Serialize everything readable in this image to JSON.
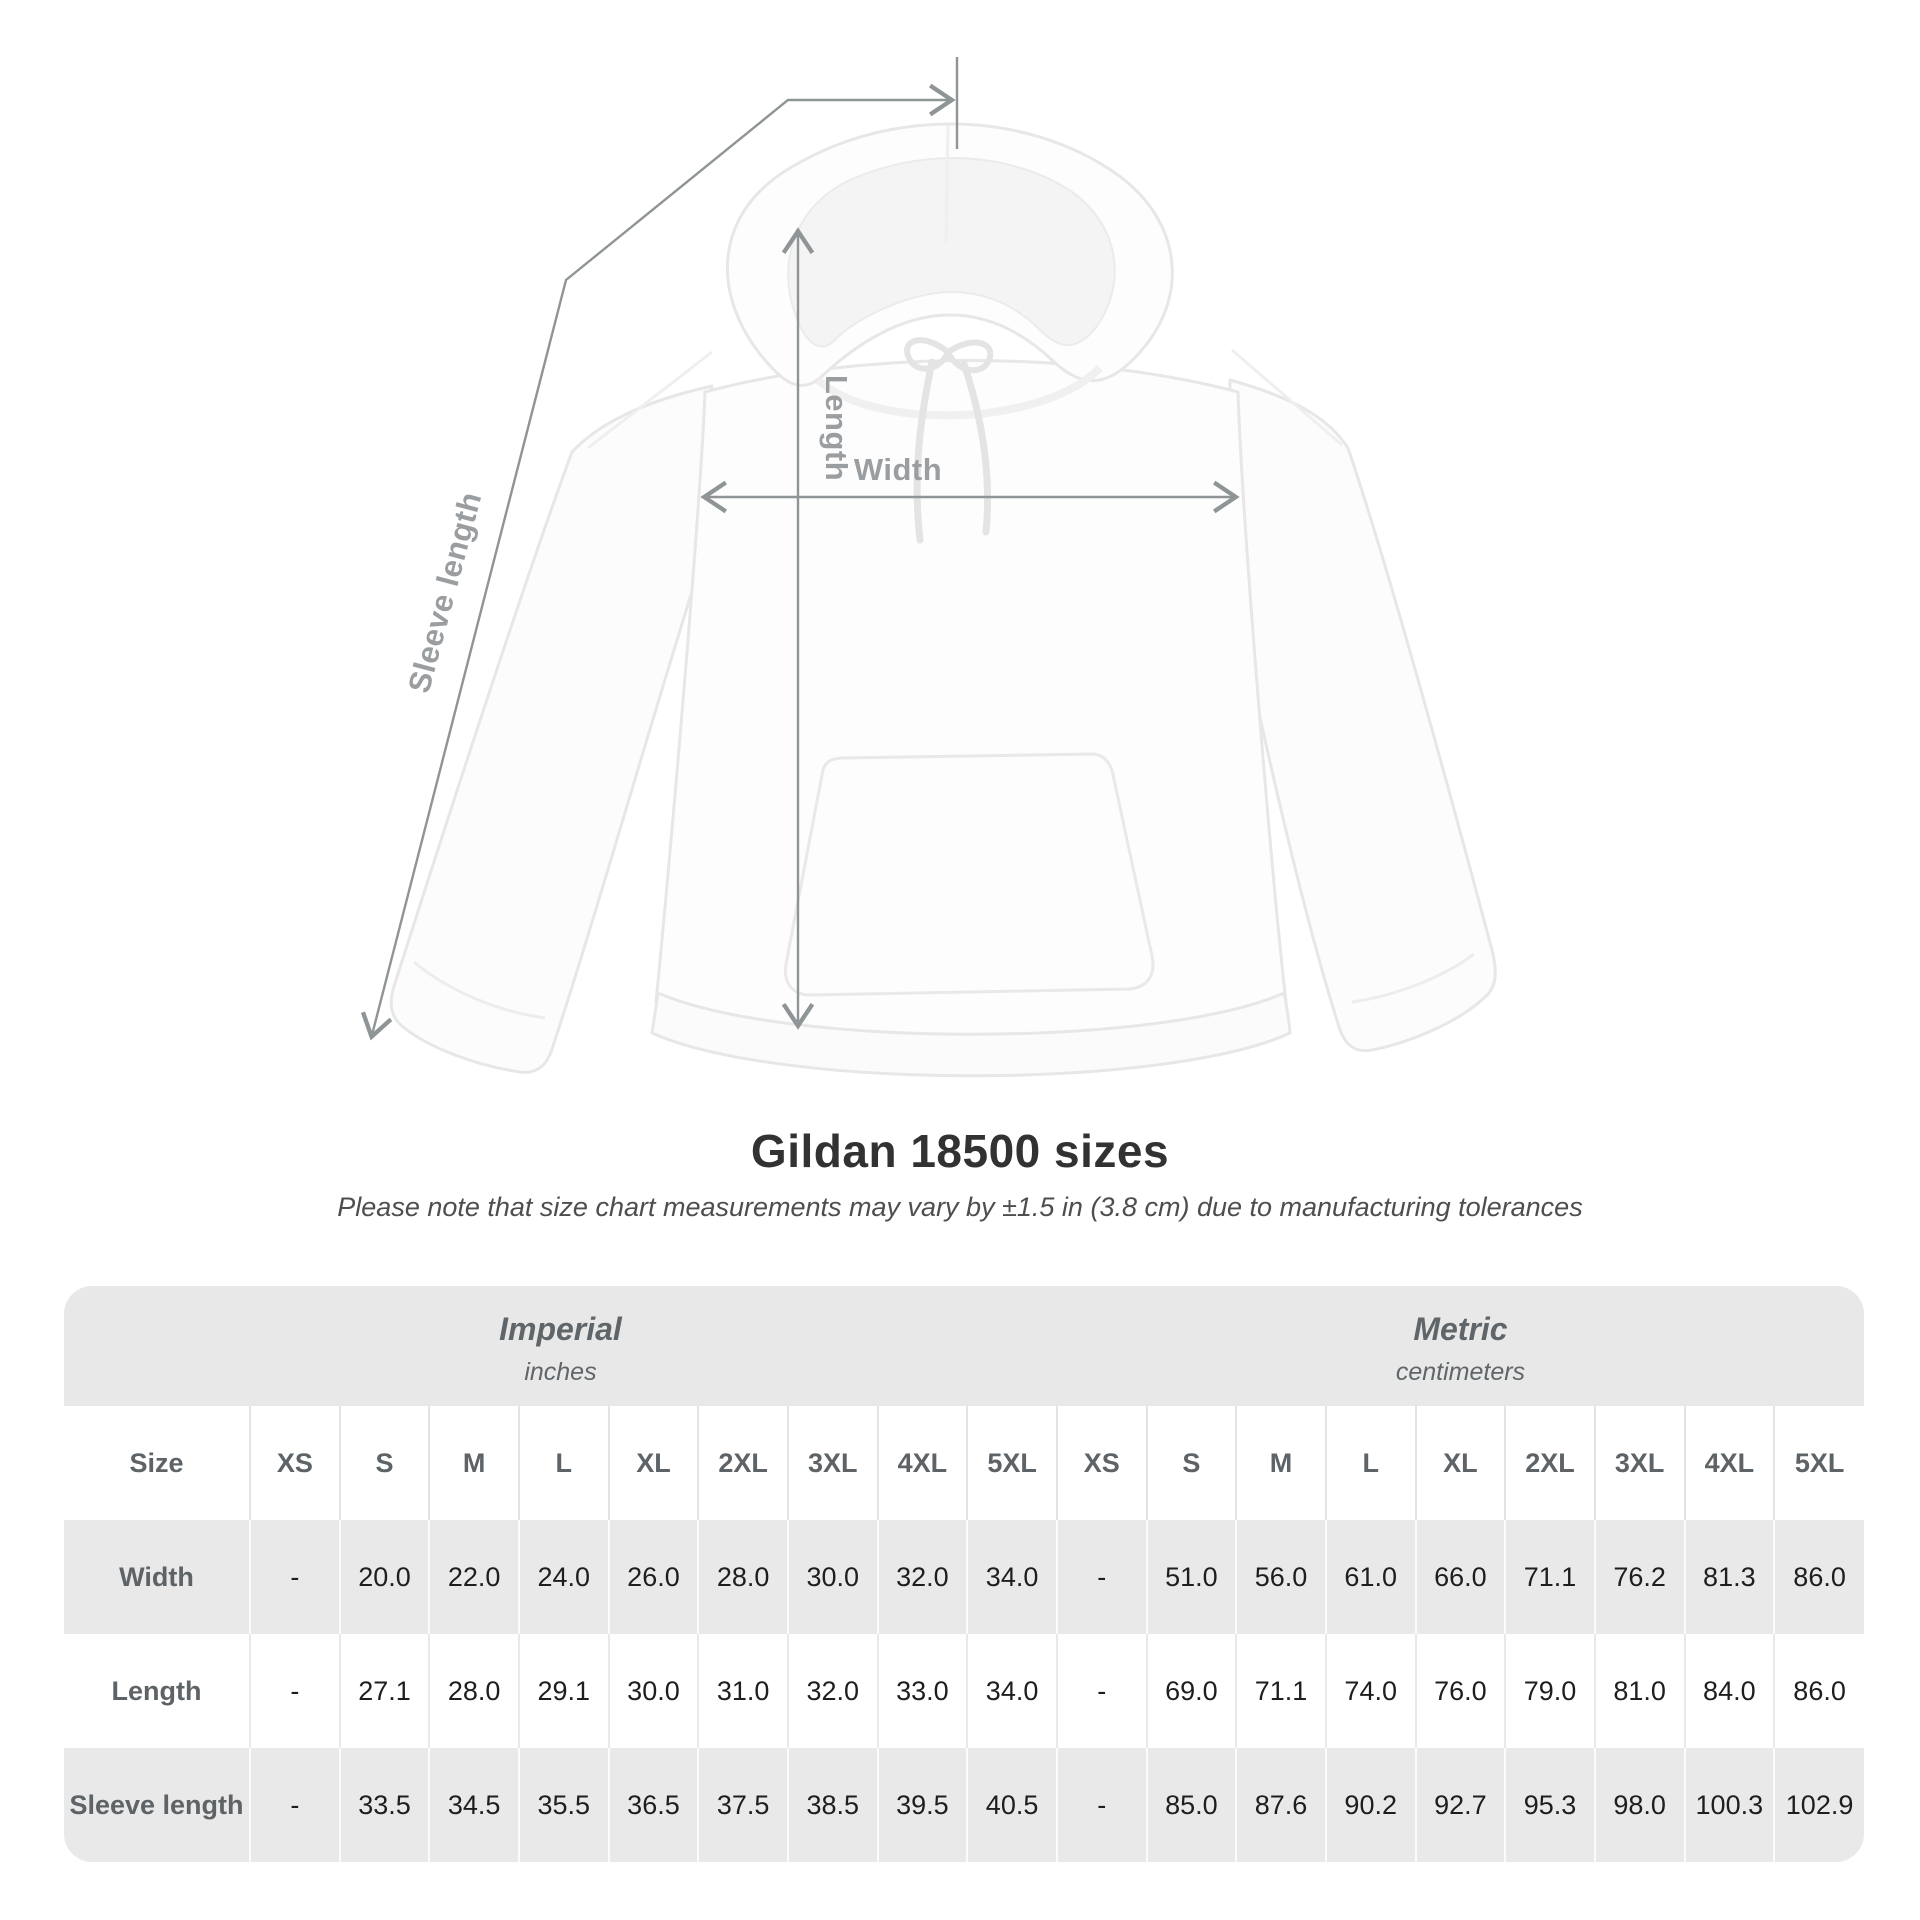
{
  "diagram": {
    "labels": {
      "length": "Length",
      "width": "Width",
      "sleeve": "Sleeve length"
    },
    "line_color": "#8f9496",
    "label_color": "#9a9ea1"
  },
  "title": "Gildan 18500 sizes",
  "subtitle": "Please note that size chart measurements may vary by ±1.5 in (3.8 cm) due to manufacturing tolerances",
  "table": {
    "unit_groups": [
      {
        "name": "Imperial",
        "unit": "inches"
      },
      {
        "name": "Metric",
        "unit": "centimeters"
      }
    ],
    "size_label": "Size",
    "sizes": [
      "XS",
      "S",
      "M",
      "L",
      "XL",
      "2XL",
      "3XL",
      "4XL",
      "5XL"
    ],
    "rows": [
      {
        "label": "Width",
        "imperial": [
          "-",
          "20.0",
          "22.0",
          "24.0",
          "26.0",
          "28.0",
          "30.0",
          "32.0",
          "34.0"
        ],
        "metric": [
          "-",
          "51.0",
          "56.0",
          "61.0",
          "66.0",
          "71.1",
          "76.2",
          "81.3",
          "86.0"
        ]
      },
      {
        "label": "Length",
        "imperial": [
          "-",
          "27.1",
          "28.0",
          "29.1",
          "30.0",
          "31.0",
          "32.0",
          "33.0",
          "34.0"
        ],
        "metric": [
          "-",
          "69.0",
          "71.1",
          "74.0",
          "76.0",
          "79.0",
          "81.0",
          "84.0",
          "86.0"
        ]
      },
      {
        "label": "Sleeve length",
        "imperial": [
          "-",
          "33.5",
          "34.5",
          "35.5",
          "36.5",
          "37.5",
          "38.5",
          "39.5",
          "40.5"
        ],
        "metric": [
          "-",
          "85.0",
          "87.6",
          "90.2",
          "92.7",
          "95.3",
          "98.0",
          "100.3",
          "102.9"
        ]
      }
    ],
    "colors": {
      "band": "#e8e8e8",
      "stripe": "#e9e9e9",
      "header_text": "#5d6366",
      "value_text": "#1e1e1e"
    }
  },
  "chart_data": {
    "type": "table",
    "title": "Gildan 18500 sizes",
    "note": "Measurements may vary by ±1.5 in (3.8 cm) due to manufacturing tolerances",
    "column_groups": [
      "Imperial (inches)",
      "Metric (centimeters)"
    ],
    "columns": [
      "XS",
      "S",
      "M",
      "L",
      "XL",
      "2XL",
      "3XL",
      "4XL",
      "5XL"
    ],
    "rows": [
      {
        "label": "Width (in)",
        "values": [
          null,
          20.0,
          22.0,
          24.0,
          26.0,
          28.0,
          30.0,
          32.0,
          34.0
        ]
      },
      {
        "label": "Length (in)",
        "values": [
          null,
          27.1,
          28.0,
          29.1,
          30.0,
          31.0,
          32.0,
          33.0,
          34.0
        ]
      },
      {
        "label": "Sleeve length (in)",
        "values": [
          null,
          33.5,
          34.5,
          35.5,
          36.5,
          37.5,
          38.5,
          39.5,
          40.5
        ]
      },
      {
        "label": "Width (cm)",
        "values": [
          null,
          51.0,
          56.0,
          61.0,
          66.0,
          71.1,
          76.2,
          81.3,
          86.0
        ]
      },
      {
        "label": "Length (cm)",
        "values": [
          null,
          69.0,
          71.1,
          74.0,
          76.0,
          79.0,
          81.0,
          84.0,
          86.0
        ]
      },
      {
        "label": "Sleeve length (cm)",
        "values": [
          null,
          85.0,
          87.6,
          90.2,
          92.7,
          95.3,
          98.0,
          100.3,
          102.9
        ]
      }
    ]
  }
}
